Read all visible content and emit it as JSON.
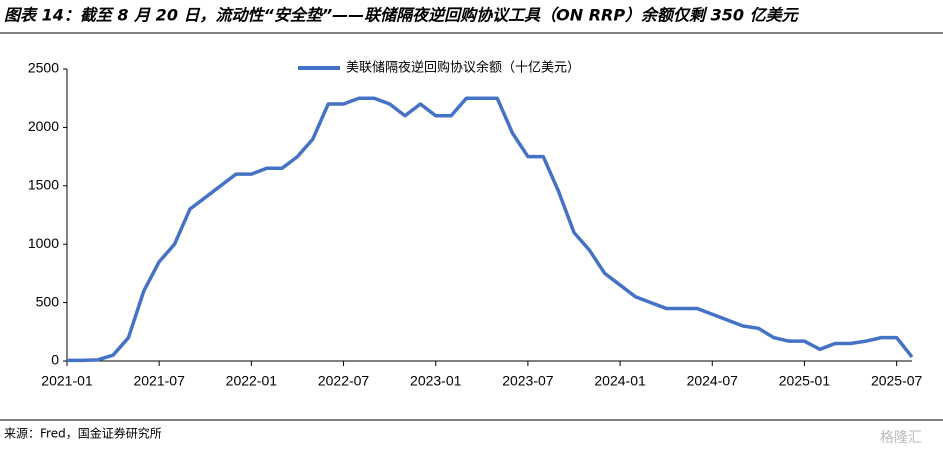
{
  "chart_data": {
    "type": "line",
    "title": "图表 14：截至 8 月 20 日，流动性“安全垫”——联储隔夜逆回购协议工具（ON RRP）余额仅剩 350 亿美元",
    "source": "来源：Fred，国金证券研究所",
    "watermark": "格隆汇",
    "x": [
      "2021-01",
      "2021-02",
      "2021-03",
      "2021-04",
      "2021-05",
      "2021-06",
      "2021-07",
      "2021-08",
      "2021-09",
      "2021-10",
      "2021-11",
      "2021-12",
      "2022-01",
      "2022-02",
      "2022-03",
      "2022-04",
      "2022-05",
      "2022-06",
      "2022-07",
      "2022-08",
      "2022-09",
      "2022-10",
      "2022-11",
      "2022-12",
      "2023-01",
      "2023-02",
      "2023-03",
      "2023-04",
      "2023-05",
      "2023-06",
      "2023-07",
      "2023-08",
      "2023-09",
      "2023-10",
      "2023-11",
      "2023-12",
      "2024-01",
      "2024-02",
      "2024-03",
      "2024-04",
      "2024-05",
      "2024-06",
      "2024-07",
      "2024-08",
      "2024-09",
      "2024-10",
      "2024-11",
      "2024-12",
      "2025-01",
      "2025-02",
      "2025-03",
      "2025-04",
      "2025-05",
      "2025-06",
      "2025-07",
      "2025-08"
    ],
    "series": [
      {
        "name": "美联储隔夜逆回购协议余额（十亿美元）",
        "color": "#4472c4",
        "values": [
          5,
          5,
          10,
          50,
          200,
          600,
          850,
          1000,
          1300,
          1400,
          1500,
          1600,
          1600,
          1650,
          1650,
          1750,
          1900,
          2200,
          2200,
          2250,
          2250,
          2200,
          2100,
          2200,
          2100,
          2100,
          2250,
          2250,
          2250,
          1950,
          1750,
          1750,
          1450,
          1100,
          950,
          750,
          650,
          550,
          500,
          450,
          450,
          450,
          400,
          350,
          300,
          280,
          200,
          170,
          170,
          100,
          150,
          150,
          170,
          200,
          200,
          35
        ]
      }
    ],
    "xlim": [
      "2021-01",
      "2025-08"
    ],
    "xticks": [
      "2021-01",
      "2021-07",
      "2022-01",
      "2022-07",
      "2023-01",
      "2023-07",
      "2024-01",
      "2024-07",
      "2025-01",
      "2025-07"
    ],
    "ylim": [
      0,
      2500
    ],
    "yticks": [
      0,
      500,
      1000,
      1500,
      2000,
      2500
    ],
    "grid": false
  }
}
